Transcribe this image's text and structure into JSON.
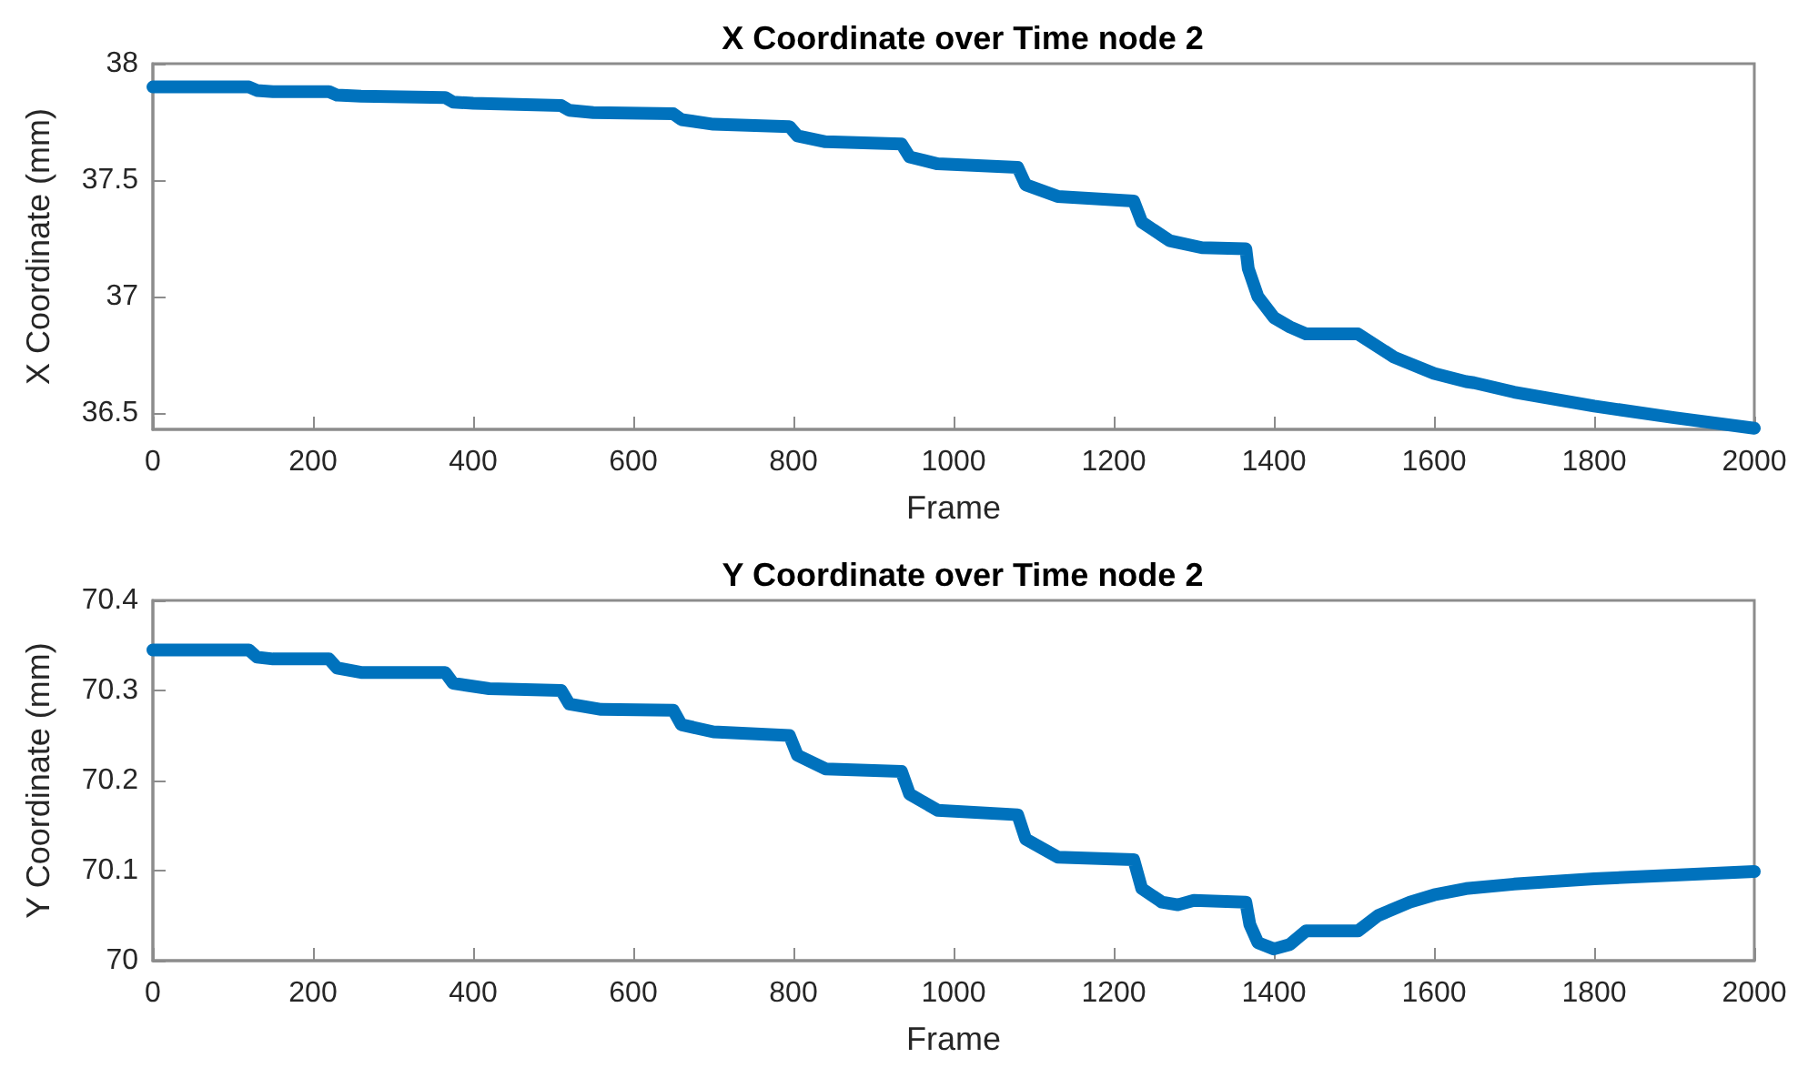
{
  "chart_data": [
    {
      "type": "line",
      "title": "X Coordinate over Time node 2",
      "xlabel": "Frame",
      "ylabel": "X Coordinate (mm)",
      "xlim": [
        0,
        2000
      ],
      "xticks": [
        0,
        200,
        400,
        600,
        800,
        1000,
        1200,
        1400,
        1600,
        1800,
        2000
      ],
      "ylim": [
        36.43,
        38
      ],
      "yticks": [
        36.5,
        37,
        37.5,
        38
      ],
      "grid": false,
      "line_style": "solid",
      "series": [
        {
          "color": "#0072bd",
          "x": [
            0,
            120,
            130,
            150,
            220,
            230,
            260,
            365,
            375,
            400,
            510,
            520,
            550,
            650,
            660,
            700,
            795,
            805,
            840,
            935,
            945,
            980,
            1080,
            1090,
            1130,
            1225,
            1235,
            1270,
            1310,
            1365,
            1368,
            1380,
            1400,
            1420,
            1440,
            1505,
            1550,
            1600,
            1640,
            1650,
            1700,
            1800,
            1900,
            2000
          ],
          "values": [
            37.9,
            37.9,
            37.885,
            37.88,
            37.88,
            37.865,
            37.86,
            37.855,
            37.835,
            37.83,
            37.82,
            37.8,
            37.79,
            37.785,
            37.76,
            37.74,
            37.73,
            37.69,
            37.665,
            37.655,
            37.6,
            37.57,
            37.555,
            37.48,
            37.43,
            37.41,
            37.32,
            37.24,
            37.21,
            37.205,
            37.12,
            37.0,
            36.91,
            36.87,
            36.84,
            36.84,
            36.74,
            36.67,
            36.635,
            36.63,
            36.59,
            36.53,
            36.48,
            36.435
          ]
        }
      ]
    },
    {
      "type": "line",
      "title": "Y Coordinate over Time node 2",
      "xlabel": "Frame",
      "ylabel": "Y Coordinate (mm)",
      "xlim": [
        0,
        2000
      ],
      "xticks": [
        0,
        200,
        400,
        600,
        800,
        1000,
        1200,
        1400,
        1600,
        1800,
        2000
      ],
      "ylim": [
        70,
        70.4
      ],
      "yticks": [
        70,
        70.1,
        70.2,
        70.3,
        70.4
      ],
      "grid": false,
      "line_style": "solid",
      "series": [
        {
          "color": "#0072bd",
          "x": [
            0,
            120,
            130,
            150,
            220,
            230,
            260,
            365,
            375,
            420,
            510,
            520,
            560,
            650,
            660,
            700,
            795,
            805,
            840,
            935,
            945,
            980,
            1080,
            1090,
            1130,
            1225,
            1235,
            1260,
            1280,
            1300,
            1365,
            1370,
            1380,
            1400,
            1420,
            1440,
            1505,
            1530,
            1570,
            1600,
            1640,
            1700,
            1800,
            1900,
            2000
          ],
          "values": [
            70.345,
            70.345,
            70.337,
            70.335,
            70.335,
            70.325,
            70.32,
            70.32,
            70.308,
            70.302,
            70.3,
            70.285,
            70.279,
            70.278,
            70.262,
            70.254,
            70.25,
            70.228,
            70.213,
            70.21,
            70.185,
            70.167,
            70.162,
            70.135,
            70.115,
            70.112,
            70.08,
            70.065,
            70.062,
            70.067,
            70.065,
            70.04,
            70.02,
            70.013,
            70.018,
            70.033,
            70.033,
            70.05,
            70.065,
            70.073,
            70.08,
            70.085,
            70.091,
            70.095,
            70.099
          ]
        }
      ]
    }
  ]
}
